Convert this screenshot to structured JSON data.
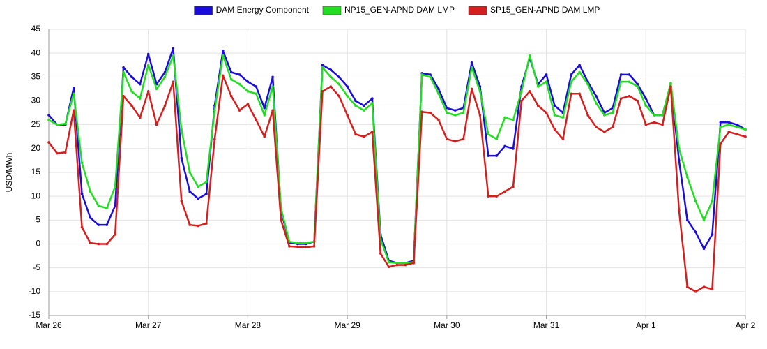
{
  "chart_data": {
    "type": "line",
    "y_label": "USD/MWh",
    "x": [
      0,
      2,
      4,
      6,
      8,
      10,
      12,
      14,
      16,
      18,
      20,
      22,
      24,
      26,
      28,
      30,
      32,
      34,
      36,
      38,
      40,
      42,
      44,
      46,
      48,
      50,
      52,
      54,
      56,
      58,
      60,
      62,
      64,
      66,
      68,
      70,
      72,
      74,
      76,
      78,
      80,
      82,
      84,
      86,
      88,
      90,
      92,
      94,
      96,
      98,
      100,
      102,
      104,
      106,
      108,
      110,
      112,
      114,
      116,
      118,
      120,
      122,
      124,
      126,
      128,
      130,
      132,
      134,
      136,
      138,
      140,
      142,
      144,
      146,
      148,
      150,
      152,
      154,
      156,
      158,
      160,
      162,
      164,
      166,
      168
    ],
    "xlim": [
      0,
      168
    ],
    "xticks": [
      {
        "value": 0,
        "label": "Mar 26"
      },
      {
        "value": 24,
        "label": "Mar 27"
      },
      {
        "value": 48,
        "label": "Mar 28"
      },
      {
        "value": 72,
        "label": "Mar 29"
      },
      {
        "value": 96,
        "label": "Mar 30"
      },
      {
        "value": 120,
        "label": "Mar 31"
      },
      {
        "value": 144,
        "label": "Apr 1"
      },
      {
        "value": 168,
        "label": "Apr 2"
      }
    ],
    "ylim": [
      -15,
      45
    ],
    "yticks": [
      -15,
      -10,
      -5,
      0,
      5,
      10,
      15,
      20,
      25,
      30,
      35,
      40,
      45
    ],
    "grid": true,
    "legend": "top",
    "series": [
      {
        "name": "DAM Energy Component",
        "color": "#1a0ddb",
        "values": [
          27,
          25,
          25,
          32.7,
          10.5,
          5.5,
          4,
          4,
          8,
          37,
          35,
          33.5,
          39.8,
          33.5,
          36,
          41,
          18,
          11,
          9.5,
          10.5,
          29,
          40.5,
          36,
          35.5,
          34,
          33,
          28.5,
          35,
          7,
          0.3,
          0,
          0,
          0.5,
          37.5,
          36.5,
          35,
          33,
          30,
          29,
          30.5,
          2,
          -3.5,
          -4,
          -4,
          -3.5,
          35.8,
          35.5,
          32.5,
          28.5,
          28,
          28.5,
          38,
          33,
          18.5,
          18.5,
          20.5,
          20,
          33,
          39,
          33.5,
          35.5,
          29,
          27.5,
          35.5,
          37.5,
          34,
          31,
          27.5,
          28.5,
          35.5,
          35.5,
          33.5,
          30.5,
          27,
          27,
          33.5,
          17.5,
          5,
          2.5,
          -1,
          2,
          25.5,
          25.5,
          25,
          24
        ]
      },
      {
        "name": "NP15_GEN-APND DAM LMP",
        "color": "#22dd22",
        "values": [
          26,
          25,
          25.2,
          31.5,
          17,
          11,
          8,
          7.5,
          12,
          36,
          32,
          30.5,
          37.5,
          32.5,
          35,
          39.5,
          24,
          15,
          12,
          13,
          28,
          39.5,
          34.5,
          33.5,
          32,
          31.5,
          27,
          33,
          7.5,
          0.5,
          0.2,
          0.2,
          0.5,
          37,
          35,
          33.5,
          31,
          29,
          28,
          29.5,
          1,
          -3.8,
          -4,
          -4,
          -3.8,
          35.5,
          35,
          31.5,
          27.5,
          27,
          27.5,
          37,
          32,
          23,
          22,
          26.5,
          26,
          32,
          39.5,
          33,
          34,
          27,
          26.5,
          34,
          36,
          33.5,
          29.5,
          27,
          27.5,
          34,
          34,
          33,
          29,
          27,
          27,
          33.7,
          20,
          14,
          9,
          5,
          9,
          24.5,
          25,
          24.5,
          24
        ]
      },
      {
        "name": "SP15_GEN-APND DAM LMP",
        "color": "#d41f1f",
        "values": [
          21.3,
          19,
          19.2,
          28,
          3.5,
          0.2,
          0,
          0,
          2,
          31,
          29,
          26.5,
          32,
          25,
          29,
          34,
          9,
          4,
          3.8,
          4.3,
          22,
          35.3,
          31,
          28,
          29.3,
          26,
          22.5,
          28,
          5,
          -0.5,
          -0.6,
          -0.7,
          -0.5,
          32,
          33,
          31,
          27,
          23,
          22.5,
          23.5,
          -2,
          -4.8,
          -4.4,
          -4.4,
          -4,
          27.7,
          27.5,
          26,
          22,
          21.5,
          22,
          32.5,
          27,
          10,
          10,
          11,
          12,
          30,
          32,
          29,
          27.5,
          24,
          22,
          31.5,
          31.5,
          27,
          24.5,
          23.5,
          24.5,
          30.5,
          31,
          30,
          25,
          25.5,
          25,
          33,
          7,
          -9,
          -10,
          -9,
          -9.5,
          21,
          23.5,
          23,
          22.5
        ]
      }
    ]
  }
}
